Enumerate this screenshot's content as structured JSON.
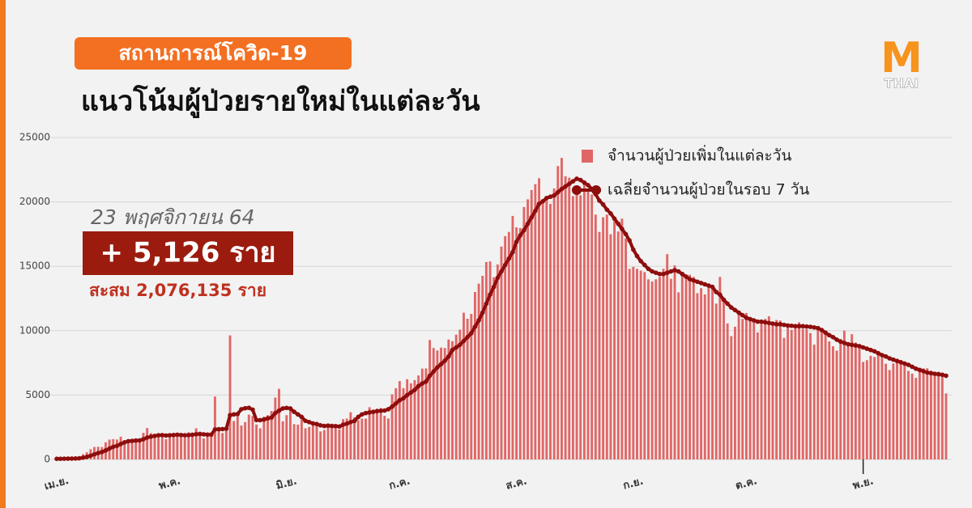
{
  "header": {
    "tag": "สถานการณ์โควิด-19",
    "logo_main": "M",
    "logo_sub": "THAI"
  },
  "chart_data": {
    "type": "bar",
    "title": "แนวโน้มผู้ป่วยรายใหม่ในแต่ละวัน",
    "annotations": {
      "date": "23 พฤศจิกายน 64",
      "new_cases": "+ 5,126 ราย",
      "cumulative": "สะสม 2,076,135 ราย"
    },
    "categories": [
      "เม.ย.",
      null,
      null,
      null,
      null,
      null,
      null,
      null,
      null,
      null,
      null,
      null,
      null,
      null,
      null,
      null,
      null,
      null,
      null,
      null,
      null,
      null,
      null,
      null,
      null,
      null,
      null,
      null,
      null,
      null,
      "พ.ค.",
      null,
      null,
      null,
      null,
      null,
      null,
      null,
      null,
      null,
      null,
      null,
      null,
      null,
      null,
      null,
      null,
      null,
      null,
      null,
      null,
      null,
      null,
      null,
      null,
      null,
      null,
      null,
      null,
      null,
      null,
      "มิ.ย.",
      null,
      null,
      null,
      null,
      null,
      null,
      null,
      null,
      null,
      null,
      null,
      null,
      null,
      null,
      null,
      null,
      null,
      null,
      null,
      null,
      null,
      null,
      null,
      null,
      null,
      null,
      null,
      null,
      null,
      "ก.ค.",
      null,
      null,
      null,
      null,
      null,
      null,
      null,
      null,
      null,
      null,
      null,
      null,
      null,
      null,
      null,
      null,
      null,
      null,
      null,
      null,
      null,
      null,
      null,
      null,
      null,
      null,
      null,
      null,
      null,
      null,
      "ส.ค.",
      null,
      null,
      null,
      null,
      null,
      null,
      null,
      null,
      null,
      null,
      null,
      null,
      null,
      null,
      null,
      null,
      null,
      null,
      null,
      null,
      null,
      null,
      null,
      null,
      null,
      null,
      null,
      null,
      null,
      null,
      "ก.ย.",
      null,
      null,
      null,
      null,
      null,
      null,
      null,
      null,
      null,
      null,
      null,
      null,
      null,
      null,
      null,
      null,
      null,
      null,
      null,
      null,
      null,
      null,
      null,
      null,
      null,
      null,
      null,
      null,
      null,
      "ต.ค.",
      null,
      null,
      null,
      null,
      null,
      null,
      null,
      null,
      null,
      null,
      null,
      null,
      null,
      null,
      null,
      null,
      null,
      null,
      null,
      null,
      null,
      null,
      null,
      null,
      null,
      null,
      null,
      null,
      null,
      null,
      "พ.ย.",
      null,
      null,
      null,
      null,
      null,
      null,
      null,
      null,
      null,
      null,
      null,
      null,
      null,
      null,
      null,
      null,
      null,
      null,
      null,
      null,
      null,
      null
    ],
    "series": [
      {
        "name": "จำนวนผู้ป่วยเพิ่มในแต่ละวัน",
        "type": "bar",
        "color": "#e06666",
        "values": [
          26,
          84,
          89,
          84,
          51,
          96,
          250,
          405,
          559,
          789,
          967,
          985,
          965,
          1335,
          1543,
          1582,
          1547,
          1767,
          1390,
          1443,
          1458,
          1470,
          1470,
          2070,
          2438,
          2048,
          1902,
          2012,
          1871,
          1583,
          1891,
          1940,
          2041,
          1763,
          1732,
          2112,
          2044,
          2419,
          2101,
          1630,
          1919,
          1983,
          4887,
          2256,
          2052,
          2302,
          9635,
          2989,
          3394,
          2636,
          2902,
          3481,
          3382,
          2713,
          2419,
          3323,
          3440,
          3759,
          4803,
          5485,
          2960,
          3440,
          3886,
          2742,
          2704,
          3092,
          2419,
          2527,
          2662,
          2680,
          2180,
          2290,
          2804,
          2578,
          2581,
          2331,
          3129,
          3174,
          3667,
          3281,
          3056,
          3175,
          3174,
          4059,
          3644,
          3946,
          3995,
          3390,
          3177,
          5064,
          5533,
          6087,
          5533,
          6230,
          5916,
          6166,
          6519,
          7058,
          7066,
          9276,
          8656,
          8463,
          8685,
          8656,
          9317,
          9186,
          9692,
          10082,
          11397,
          10928,
          11305,
          13002,
          13655,
          14260,
          15335,
          15376,
          14150,
          15144,
          16533,
          17345,
          17669,
          18912,
          18027,
          17970,
          19603,
          20200,
          20920,
          21379,
          21838,
          19983,
          20420,
          19843,
          21038,
          22782,
          23418,
          21990,
          21882,
          20452,
          21176,
          20515,
          21614,
          20902,
          20571,
          19014,
          17668,
          18804,
          19014,
          17492,
          18501,
          17704,
          18702,
          17176,
          14802,
          14956,
          14802,
          14666,
          14555,
          13988,
          13821,
          13988,
          14176,
          14802,
          15942,
          14029,
          15069,
          12973,
          14562,
          14109,
          14337,
          14173,
          12913,
          13300,
          12814,
          13477,
          13392,
          12103,
          14176,
          12530,
          10564,
          9575,
          10308,
          11353,
          10919,
          11375,
          10828,
          10919,
          9869,
          10817,
          10919,
          11120,
          10613,
          10828,
          10786,
          9445,
          10288,
          10064,
          10486,
          10648,
          10150,
          10111,
          9810,
          8918,
          10119,
          9920,
          9744,
          9166,
          8788,
          8452,
          9357,
          10000,
          9070,
          9727,
          9079,
          8675,
          7574,
          7706,
          8049,
          7960,
          8106,
          7919,
          7432,
          6950,
          7456,
          7751,
          7705,
          7317,
          6875,
          6667,
          6340,
          6906,
          7079,
          7079,
          6893,
          6810,
          6812,
          6548,
          5126
        ]
      },
      {
        "name": "เฉลี่ยจำนวนผู้ป่วยในรอบ 7 วัน",
        "type": "line",
        "color": "#8e0d0d",
        "values": [
          50,
          55,
          60,
          65,
          68,
          75,
          90,
          140,
          200,
          290,
          400,
          500,
          580,
          700,
          850,
          980,
          1060,
          1200,
          1330,
          1420,
          1440,
          1470,
          1480,
          1570,
          1700,
          1770,
          1830,
          1880,
          1890,
          1860,
          1880,
          1900,
          1920,
          1900,
          1880,
          1890,
          1920,
          1960,
          1980,
          1950,
          1930,
          1930,
          2330,
          2350,
          2360,
          2390,
          3440,
          3500,
          3530,
          3900,
          3980,
          4010,
          3870,
          3060,
          3050,
          3100,
          3190,
          3260,
          3600,
          3790,
          3960,
          4000,
          3960,
          3700,
          3500,
          3300,
          3000,
          2900,
          2800,
          2750,
          2650,
          2600,
          2620,
          2600,
          2590,
          2560,
          2700,
          2780,
          2900,
          2990,
          3300,
          3500,
          3600,
          3650,
          3700,
          3750,
          3780,
          3800,
          3900,
          4100,
          4350,
          4600,
          4750,
          5000,
          5200,
          5400,
          5700,
          5900,
          6050,
          6500,
          6830,
          7150,
          7400,
          7670,
          8000,
          8500,
          8700,
          8900,
          9200,
          9500,
          9800,
          10300,
          10800,
          11400,
          12100,
          12800,
          13400,
          14100,
          14600,
          15100,
          15600,
          16100,
          16900,
          17400,
          17800,
          18300,
          18800,
          19300,
          19850,
          20050,
          20300,
          20400,
          20500,
          20750,
          21000,
          21200,
          21400,
          21600,
          21800,
          21700,
          21500,
          21300,
          21000,
          20600,
          20100,
          19800,
          19400,
          19100,
          18700,
          18300,
          17900,
          17500,
          17000,
          16300,
          15800,
          15400,
          15100,
          14800,
          14600,
          14500,
          14400,
          14400,
          14500,
          14600,
          14700,
          14600,
          14400,
          14200,
          14000,
          13900,
          13800,
          13700,
          13600,
          13500,
          13400,
          13000,
          12800,
          12400,
          12100,
          11800,
          11600,
          11400,
          11200,
          11000,
          10900,
          10800,
          10700,
          10700,
          10650,
          10600,
          10550,
          10500,
          10500,
          10450,
          10400,
          10380,
          10350,
          10350,
          10350,
          10320,
          10300,
          10250,
          10200,
          10050,
          9850,
          9650,
          9500,
          9300,
          9150,
          9050,
          8950,
          8900,
          8850,
          8800,
          8700,
          8600,
          8500,
          8400,
          8250,
          8100,
          8000,
          7850,
          7750,
          7650,
          7550,
          7450,
          7350,
          7200,
          7050,
          6950,
          6850,
          6750,
          6700,
          6650,
          6620,
          6580,
          6500
        ]
      }
    ],
    "ylim": [
      0,
      25000
    ],
    "yticks": [
      0,
      5000,
      10000,
      15000,
      20000,
      25000
    ],
    "grid": true,
    "legend": "top-right"
  }
}
